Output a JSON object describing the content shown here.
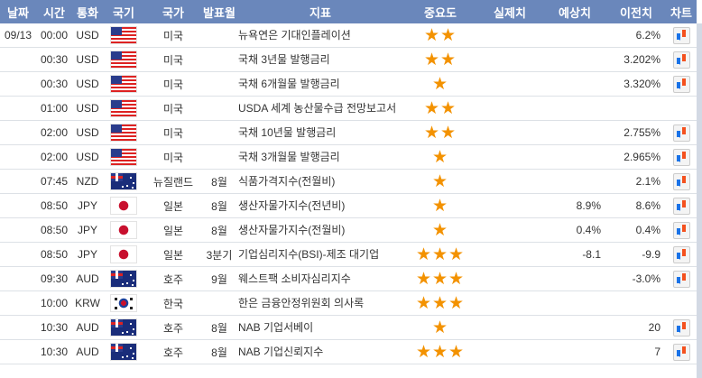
{
  "header": {
    "date": "날짜",
    "time": "시간",
    "currency": "통화",
    "flag": "국기",
    "country": "국가",
    "period": "발표월",
    "indicator": "지표",
    "importance": "중요도",
    "actual": "실제치",
    "forecast": "예상치",
    "previous": "이전치",
    "chart": "차트"
  },
  "colors": {
    "header_bg": "#6a87bb",
    "star": "#f39200"
  },
  "rows": [
    {
      "date": "09/13",
      "time": "00:00",
      "currency": "USD",
      "flag": "us-flag-icon",
      "country": "미국",
      "period": "",
      "indicator": "뉴욕연은 기대인플레이션",
      "importance": 2,
      "actual": "",
      "forecast": "",
      "previous": "6.2%",
      "chart": true
    },
    {
      "date": "",
      "time": "00:30",
      "currency": "USD",
      "flag": "us-flag-icon",
      "country": "미국",
      "period": "",
      "indicator": "국채 3년물 발행금리",
      "importance": 2,
      "actual": "",
      "forecast": "",
      "previous": "3.202%",
      "chart": true
    },
    {
      "date": "",
      "time": "00:30",
      "currency": "USD",
      "flag": "us-flag-icon",
      "country": "미국",
      "period": "",
      "indicator": "국채 6개월물 발행금리",
      "importance": 1,
      "actual": "",
      "forecast": "",
      "previous": "3.320%",
      "chart": true
    },
    {
      "date": "",
      "time": "01:00",
      "currency": "USD",
      "flag": "us-flag-icon",
      "country": "미국",
      "period": "",
      "indicator": "USDA 세계 농산물수급 전망보고서",
      "importance": 2,
      "actual": "",
      "forecast": "",
      "previous": "",
      "chart": false
    },
    {
      "date": "",
      "time": "02:00",
      "currency": "USD",
      "flag": "us-flag-icon",
      "country": "미국",
      "period": "",
      "indicator": "국채 10년물 발행금리",
      "importance": 2,
      "actual": "",
      "forecast": "",
      "previous": "2.755%",
      "chart": true
    },
    {
      "date": "",
      "time": "02:00",
      "currency": "USD",
      "flag": "us-flag-icon",
      "country": "미국",
      "period": "",
      "indicator": "국채 3개월물 발행금리",
      "importance": 1,
      "actual": "",
      "forecast": "",
      "previous": "2.965%",
      "chart": true
    },
    {
      "date": "",
      "time": "07:45",
      "currency": "NZD",
      "flag": "nz-flag-icon",
      "country": "뉴질랜드",
      "period": "8월",
      "indicator": "식품가격지수(전월비)",
      "importance": 1,
      "actual": "",
      "forecast": "",
      "previous": "2.1%",
      "chart": true
    },
    {
      "date": "",
      "time": "08:50",
      "currency": "JPY",
      "flag": "jp-flag-icon",
      "country": "일본",
      "period": "8월",
      "indicator": "생산자물가지수(전년비)",
      "importance": 1,
      "actual": "",
      "forecast": "8.9%",
      "previous": "8.6%",
      "chart": true
    },
    {
      "date": "",
      "time": "08:50",
      "currency": "JPY",
      "flag": "jp-flag-icon",
      "country": "일본",
      "period": "8월",
      "indicator": "생산자물가지수(전월비)",
      "importance": 1,
      "actual": "",
      "forecast": "0.4%",
      "previous": "0.4%",
      "chart": true
    },
    {
      "date": "",
      "time": "08:50",
      "currency": "JPY",
      "flag": "jp-flag-icon",
      "country": "일본",
      "period": "3분기",
      "indicator": "기업심리지수(BSI)-제조 대기업",
      "importance": 3,
      "actual": "",
      "forecast": "-8.1",
      "previous": "-9.9",
      "chart": true
    },
    {
      "date": "",
      "time": "09:30",
      "currency": "AUD",
      "flag": "au-flag-icon",
      "country": "호주",
      "period": "9월",
      "indicator": "웨스트팩 소비자심리지수",
      "importance": 3,
      "actual": "",
      "forecast": "",
      "previous": "-3.0%",
      "chart": true
    },
    {
      "date": "",
      "time": "10:00",
      "currency": "KRW",
      "flag": "kr-flag-icon",
      "country": "한국",
      "period": "",
      "indicator": "한은 금융안정위원회 의사록",
      "importance": 3,
      "actual": "",
      "forecast": "",
      "previous": "",
      "chart": false
    },
    {
      "date": "",
      "time": "10:30",
      "currency": "AUD",
      "flag": "au-flag-icon",
      "country": "호주",
      "period": "8월",
      "indicator": "NAB 기업서베이",
      "importance": 1,
      "actual": "",
      "forecast": "",
      "previous": "20",
      "chart": true
    },
    {
      "date": "",
      "time": "10:30",
      "currency": "AUD",
      "flag": "au-flag-icon",
      "country": "호주",
      "period": "8월",
      "indicator": "NAB 기업신뢰지수",
      "importance": 3,
      "actual": "",
      "forecast": "",
      "previous": "7",
      "chart": true
    }
  ]
}
